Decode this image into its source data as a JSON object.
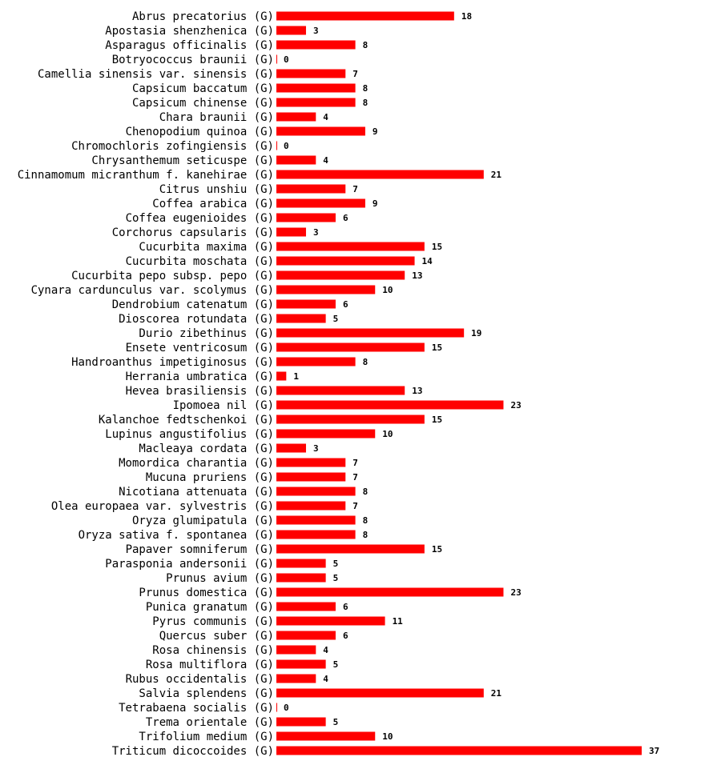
{
  "chart_data": {
    "type": "bar",
    "orientation": "horizontal",
    "title": "",
    "xlabel": "",
    "ylabel": "",
    "bar_color": "#ff0000",
    "xlim": [
      0,
      37
    ],
    "categories": [
      "Abrus precatorius (G)",
      "Apostasia shenzhenica (G)",
      "Asparagus officinalis (G)",
      "Botryococcus braunii (G)",
      "Camellia sinensis var. sinensis (G)",
      "Capsicum baccatum (G)",
      "Capsicum chinense (G)",
      "Chara braunii (G)",
      "Chenopodium quinoa (G)",
      "Chromochloris zofingiensis (G)",
      "Chrysanthemum seticuspe (G)",
      "Cinnamomum micranthum f. kanehirae (G)",
      "Citrus unshiu (G)",
      "Coffea arabica (G)",
      "Coffea eugenioides (G)",
      "Corchorus capsularis (G)",
      "Cucurbita maxima (G)",
      "Cucurbita moschata (G)",
      "Cucurbita pepo subsp. pepo (G)",
      "Cynara cardunculus var. scolymus (G)",
      "Dendrobium catenatum (G)",
      "Dioscorea rotundata (G)",
      "Durio zibethinus (G)",
      "Ensete ventricosum (G)",
      "Handroanthus impetiginosus (G)",
      "Herrania umbratica (G)",
      "Hevea brasiliensis (G)",
      "Ipomoea nil (G)",
      "Kalanchoe fedtschenkoi (G)",
      "Lupinus angustifolius (G)",
      "Macleaya cordata (G)",
      "Momordica charantia (G)",
      "Mucuna pruriens (G)",
      "Nicotiana attenuata (G)",
      "Olea europaea var. sylvestris (G)",
      "Oryza glumipatula (G)",
      "Oryza sativa f. spontanea (G)",
      "Papaver somniferum (G)",
      "Parasponia andersonii (G)",
      "Prunus avium (G)",
      "Prunus domestica (G)",
      "Punica granatum (G)",
      "Pyrus communis (G)",
      "Quercus suber (G)",
      "Rosa chinensis (G)",
      "Rosa multiflora (G)",
      "Rubus occidentalis (G)",
      "Salvia splendens (G)",
      "Tetrabaena socialis (G)",
      "Trema orientale (G)",
      "Trifolium medium (G)",
      "Triticum dicoccoides (G)"
    ],
    "values": [
      18,
      3,
      8,
      0,
      7,
      8,
      8,
      4,
      9,
      0,
      4,
      21,
      7,
      9,
      6,
      3,
      15,
      14,
      13,
      10,
      6,
      5,
      19,
      15,
      8,
      1,
      13,
      23,
      15,
      10,
      3,
      7,
      7,
      8,
      7,
      8,
      8,
      15,
      5,
      5,
      23,
      6,
      11,
      6,
      4,
      5,
      4,
      21,
      0,
      5,
      10,
      37
    ]
  }
}
